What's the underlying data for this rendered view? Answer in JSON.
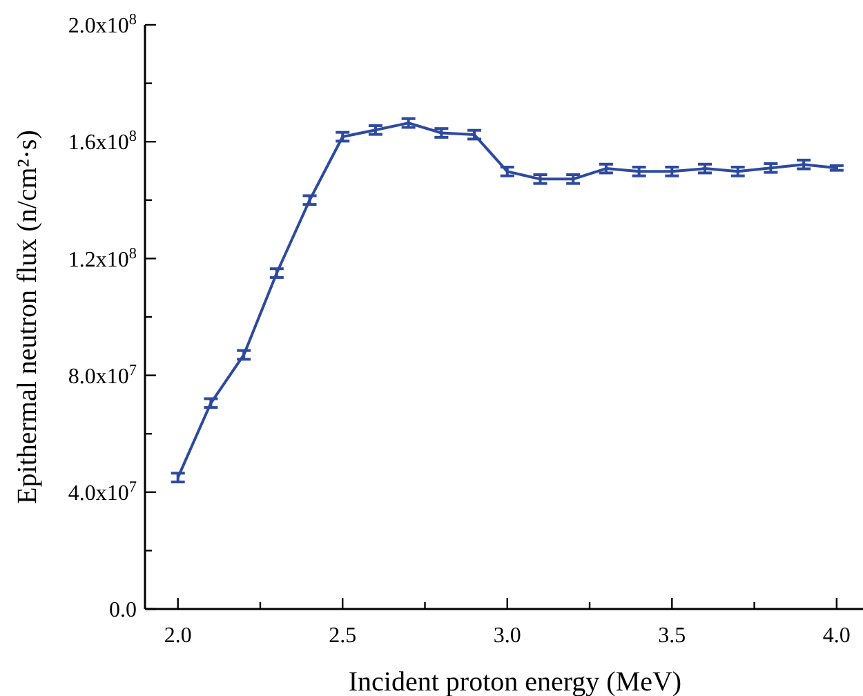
{
  "chart_data": {
    "type": "line",
    "xlabel": "Incident proton energy (MeV)",
    "ylabel": "Epithermal neutron flux (n/cm²·s)",
    "x": [
      2.0,
      2.1,
      2.2,
      2.3,
      2.4,
      2.5,
      2.6,
      2.7,
      2.8,
      2.9,
      3.0,
      3.1,
      3.2,
      3.3,
      3.4,
      3.5,
      3.6,
      3.7,
      3.8,
      3.9,
      4.0
    ],
    "series": [
      {
        "color": "#2e4a9e",
        "values": [
          45000000,
          70500000,
          87000000,
          115000000,
          140000000,
          161700000,
          164000000,
          166400000,
          163000000,
          162400000,
          149800000,
          147200000,
          147200000,
          150800000,
          149800000,
          149800000,
          150800000,
          149800000,
          151000000,
          152200000,
          151000000
        ],
        "errors": [
          1500000,
          1500000,
          1500000,
          1500000,
          1500000,
          1500000,
          1500000,
          1500000,
          1500000,
          1500000,
          1500000,
          1500000,
          1500000,
          1500000,
          1500000,
          1500000,
          1500000,
          1500000,
          1500000,
          1500000,
          800000
        ]
      }
    ],
    "xlim": [
      1.9,
      4.08
    ],
    "ylim": [
      0,
      200000000
    ],
    "xticks": [
      {
        "value": 2,
        "label": "2.0"
      },
      {
        "value": 2.25,
        "label": null
      },
      2.5,
      {
        "value": 2.75,
        "label": null
      },
      {
        "value": 3,
        "label": "3.0"
      },
      {
        "value": 3.25,
        "label": null
      },
      3.5,
      {
        "value": 3.75,
        "label": null
      },
      {
        "value": 4,
        "label": "4.0"
      }
    ],
    "yticks": [
      {
        "value": 0,
        "label": "0.0"
      },
      {
        "value": 20000000,
        "label": null
      },
      {
        "value": 40000000,
        "label": "4.0x10$^{7}$"
      },
      {
        "value": 60000000,
        "label": null
      },
      {
        "value": 80000000,
        "label": "8.0x10$^{7}$"
      },
      {
        "value": 100000000,
        "label": null
      },
      {
        "value": 120000000,
        "label": "1.2x10$^{8}$"
      },
      {
        "value": 140000000,
        "label": null
      },
      {
        "value": 160000000,
        "label": "1.6x10$^{8}$"
      },
      {
        "value": 180000000,
        "label": null
      },
      {
        "value": 200000000,
        "label": "2.0x10$^{8}$"
      }
    ],
    "grid": false,
    "marker": "none",
    "line_style": "solid"
  }
}
